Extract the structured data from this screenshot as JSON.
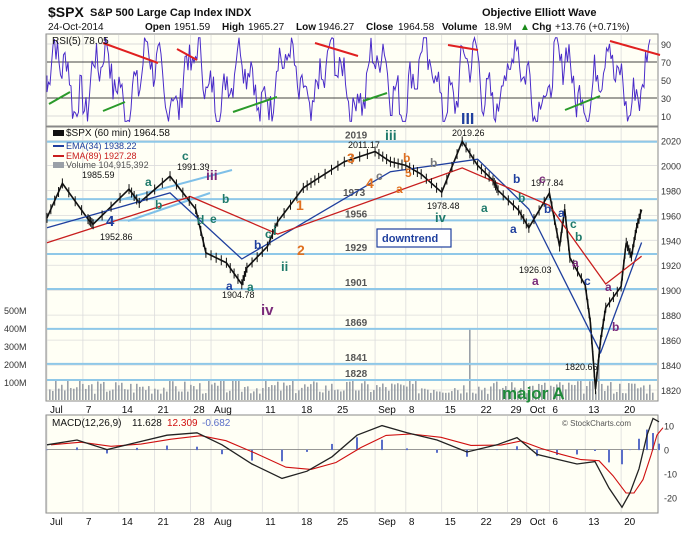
{
  "header": {
    "symbol": "$SPX",
    "name": "S&P 500 Large Cap Index",
    "exchange": "INDX",
    "source": "Objective Elliott Wave",
    "date": "24-Oct-2014",
    "open_label": "Open",
    "open": "1951.59",
    "high_label": "High",
    "high": "1965.27",
    "low_label": "Low",
    "low": "1946.27",
    "close_label": "Close",
    "close": "1964.58",
    "volume_label": "Volume",
    "volume": "18.9M",
    "chg_label": "Chg",
    "chg": "+13.76 (+0.71%)",
    "chg_arrow": "▲",
    "watermark": "© StockCharts.com"
  },
  "colors": {
    "panel_bg": "#fffff5",
    "rsi_line": "#4a2cc9",
    "price_bars": "#111111",
    "ema_fast": "#1f3f9e",
    "ema_slow": "#c81e1e",
    "support_lines": "#8fc8e8",
    "trend_red": "#e02020",
    "trend_green": "#2a9a2a",
    "wave_blue": "#1f3f9e",
    "wave_teal": "#1f7a6b",
    "wave_orange": "#e07020",
    "wave_purple": "#7a2a7a",
    "wave_gray": "#7a7a7a",
    "wave_green": "#1f8a3a",
    "macd_line": "#222222",
    "macd_signal": "#d01010",
    "macd_hist": "#5a6ec8"
  },
  "rsi_panel": {
    "legend": "RSI(5) 78.05",
    "levels": [
      10,
      30,
      50,
      70,
      90
    ],
    "tick_labels": [
      "90",
      "70",
      "50",
      "30",
      "10"
    ]
  },
  "price_panel": {
    "legend_main": "$SPX (60 min) 1964.58",
    "legend_ema_fast": "EMA(34) 1938.22",
    "legend_ema_slow": "EMA(89) 1927.28",
    "legend_volume": "Volume 104,915,392",
    "banner": "downtrend",
    "big_label": "major A",
    "support_levels": [
      1828,
      1841,
      1869,
      1901,
      1929,
      1956,
      1973,
      2019
    ],
    "y_ticks": [
      "2020",
      "2000",
      "1980",
      "1960",
      "1940",
      "1920",
      "1900",
      "1880",
      "1860",
      "1840",
      "1820"
    ],
    "volume_ticks": [
      "500M",
      "400M",
      "300M",
      "200M",
      "100M"
    ],
    "price_labels": [
      "1985.59",
      "1952.86",
      "1991.39",
      "1904.78",
      "2011.17",
      "2019.26",
      "1978.48",
      "1977.84",
      "1926.03",
      "1820.66"
    ],
    "waves": [
      "a",
      "4",
      "b",
      "c",
      "d",
      "iii",
      "e",
      "b",
      "a",
      "b",
      "c",
      "i",
      "a",
      "ii",
      "iv",
      "1",
      "2",
      "3",
      "4",
      "a",
      "b",
      "5",
      "c",
      "b",
      "iii",
      "III",
      "iv",
      "a",
      "b",
      "a",
      "b",
      "c",
      "a",
      "b",
      "a",
      "c",
      "a",
      "b",
      "c",
      "a",
      "b"
    ]
  },
  "macd_panel": {
    "legend_label": "MACD(12,26,9)",
    "macd": "11.628",
    "signal": "12.309",
    "hist": "-0.682",
    "y_ticks": [
      "10",
      "0",
      "-10",
      "-20"
    ]
  },
  "x_axis": {
    "labels": [
      "Jul",
      "7",
      "14",
      "21",
      "28",
      "Aug",
      "11",
      "18",
      "25",
      "Sep",
      "8",
      "15",
      "22",
      "29",
      "Oct",
      "6",
      "13",
      "20"
    ]
  },
  "chart_data": {
    "type": "line",
    "title": "$SPX S&P 500 Large Cap Index INDX",
    "series": [
      {
        "name": "$SPX (60 min)",
        "points": [
          [
            "2014-06-30",
            1958
          ],
          [
            "2014-07-03",
            1985.59
          ],
          [
            "2014-07-08",
            1957
          ],
          [
            "2014-07-09",
            1952.86
          ],
          [
            "2014-07-16",
            1981
          ],
          [
            "2014-07-18",
            1970
          ],
          [
            "2014-07-24",
            1991.39
          ],
          [
            "2014-07-29",
            1965
          ],
          [
            "2014-07-31",
            1930
          ],
          [
            "2014-08-04",
            1922
          ],
          [
            "2014-08-07",
            1904.78
          ],
          [
            "2014-08-08",
            1918
          ],
          [
            "2014-08-12",
            1935
          ],
          [
            "2014-08-14",
            1955
          ],
          [
            "2014-08-19",
            1982
          ],
          [
            "2014-08-22",
            1990
          ],
          [
            "2014-08-27",
            2003
          ],
          [
            "2014-09-02",
            2011.17
          ],
          [
            "2014-09-05",
            2003
          ],
          [
            "2014-09-08",
            2000
          ],
          [
            "2014-09-11",
            1993
          ],
          [
            "2014-09-15",
            1978.48
          ],
          [
            "2014-09-19",
            2019.26
          ],
          [
            "2014-09-22",
            2000
          ],
          [
            "2014-09-25",
            1988
          ],
          [
            "2014-09-26",
            1980
          ],
          [
            "2014-09-30",
            1964
          ],
          [
            "2014-10-02",
            1950
          ],
          [
            "2014-10-06",
            1977.84
          ],
          [
            "2014-10-08",
            1935
          ],
          [
            "2014-10-09",
            1965
          ],
          [
            "2014-10-10",
            1926.03
          ],
          [
            "2014-10-13",
            1904
          ],
          [
            "2014-10-14",
            1874
          ],
          [
            "2014-10-15",
            1820.66
          ],
          [
            "2014-10-16",
            1860
          ],
          [
            "2014-10-17",
            1886
          ],
          [
            "2014-10-20",
            1903
          ],
          [
            "2014-10-21",
            1938
          ],
          [
            "2014-10-22",
            1927
          ],
          [
            "2014-10-23",
            1950
          ],
          [
            "2014-10-24",
            1964.58
          ]
        ]
      },
      {
        "name": "EMA(34)",
        "points": [
          [
            "2014-06-30",
            1950
          ],
          [
            "2014-07-24",
            1978
          ],
          [
            "2014-08-07",
            1925
          ],
          [
            "2014-09-05",
            1995
          ],
          [
            "2014-09-22",
            2005
          ],
          [
            "2014-10-02",
            1965
          ],
          [
            "2014-10-16",
            1850
          ],
          [
            "2014-10-24",
            1938.22
          ]
        ]
      },
      {
        "name": "EMA(89)",
        "points": [
          [
            "2014-06-30",
            1938
          ],
          [
            "2014-07-28",
            1975
          ],
          [
            "2014-08-14",
            1945
          ],
          [
            "2014-09-19",
            1998
          ],
          [
            "2014-10-06",
            1968
          ],
          [
            "2014-10-17",
            1905
          ],
          [
            "2014-10-24",
            1927.28
          ]
        ]
      },
      {
        "name": "RSI(5)",
        "last": 78.05
      },
      {
        "name": "MACD(12,26,9)",
        "macd": 11.628,
        "signal": 12.309,
        "histogram": -0.682
      }
    ],
    "support_levels": [
      1828,
      1841,
      1869,
      1901,
      1929,
      1956,
      1973,
      2019
    ],
    "ylim": [
      1812,
      2030
    ]
  }
}
